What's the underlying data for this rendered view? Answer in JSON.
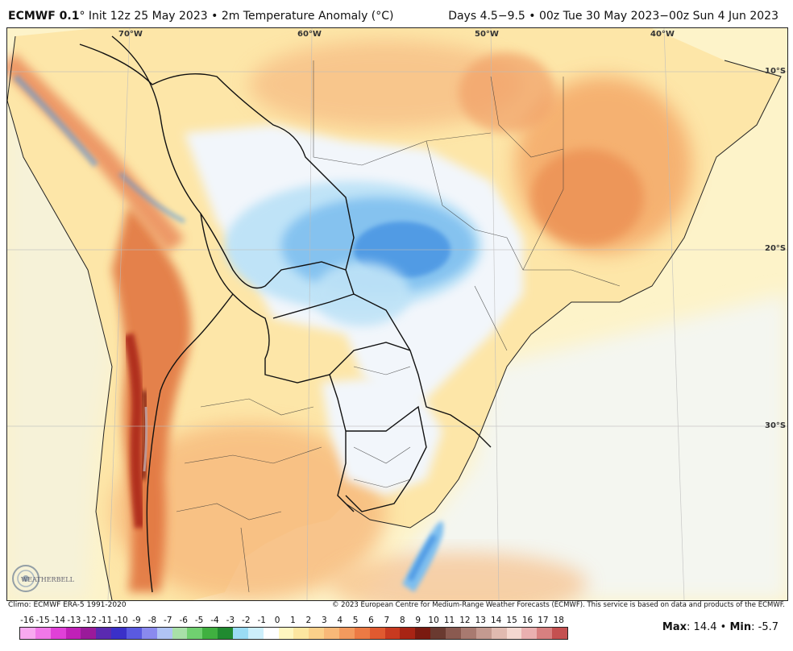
{
  "header": {
    "model": "ECMWF 0.1",
    "init": "° Init 12z 25 May 2023",
    "bullet": "•",
    "variable": "2m Temperature Anomaly (°C)",
    "valid": "Days 4.5−9.5 • 00z Tue 30 May 2023−00z Sun 4 Jun 2023"
  },
  "map": {
    "longitude_labels": [
      "70°W",
      "60°W",
      "50°W",
      "40°W"
    ],
    "latitude_labels": [
      "10°S",
      "20°S",
      "30°S"
    ],
    "colors": {
      "ocean_warm": "#fdf3c9",
      "land_warm": "#fde6a8",
      "orange": "#f7b97c",
      "dark_orange": "#ea8b50",
      "red": "#d04020",
      "dark_red": "#8a1808",
      "near_zero": "#f2f6fb",
      "light_blue": "#bfe3f7",
      "mid_blue": "#7fbfef",
      "blue": "#4a95e3"
    }
  },
  "footer": {
    "climo": "Climo: ECMWF ERA-5 1991-2020",
    "copyright": "© 2023 European Centre for Medium-Range Weather Forecasts (ECMWF). This service is based on data and products of the ECMWF."
  },
  "logo": {
    "text": "WEATHERBELL",
    "icon": "weatherbell-swirl-logo"
  },
  "colorbar": {
    "labels": [
      "-16",
      "-15",
      "-14",
      "-13",
      "-12",
      "-11",
      "-10",
      "-9",
      "-8",
      "-7",
      "-6",
      "-5",
      "-4",
      "-3",
      "-2",
      "-1",
      "0",
      "1",
      "2",
      "3",
      "4",
      "5",
      "6",
      "7",
      "8",
      "9",
      "10",
      "11",
      "12",
      "13",
      "14",
      "15",
      "16",
      "17",
      "18"
    ],
    "colors": [
      "#f8a9f0",
      "#f078e8",
      "#e040d8",
      "#c020b8",
      "#9a1a9a",
      "#5a2ab0",
      "#3a30c8",
      "#5a5ae0",
      "#8a8aee",
      "#b0c4f4",
      "#a8e0a8",
      "#70d070",
      "#40b040",
      "#208a30",
      "#9adcf4",
      "#cdeffb",
      "#ffffff",
      "#fff6c0",
      "#fde6a0",
      "#fbd08a",
      "#f8b878",
      "#f39a5e",
      "#ec7a44",
      "#e05a30",
      "#c83a20",
      "#a82414",
      "#7a1a10",
      "#6a3a30",
      "#8a5a50",
      "#a87a70",
      "#c49a90",
      "#e0bab0",
      "#f4d8d0",
      "#eab0b0",
      "#d88080",
      "#c45050"
    ]
  },
  "stats": {
    "max_label": "Max",
    "max_value": "14.4",
    "min_label": "Min",
    "min_value": "-5.7",
    "separator": "•"
  }
}
